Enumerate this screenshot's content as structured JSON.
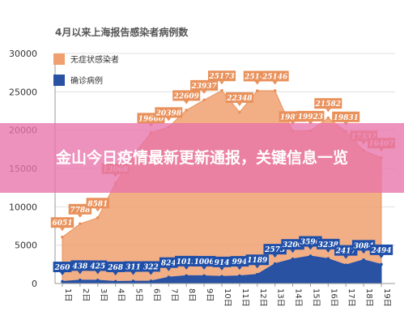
{
  "banner": {
    "headline": "金山今日疫情最新更新通报，关键信息一览"
  },
  "colors": {
    "asymptomatic": "#f0a070",
    "asymptomatic_label": "#e9915b",
    "confirmed": "#2952a3",
    "confirmed_label": "#1f4fa8",
    "grid": "#e0e0e0"
  },
  "chart_data": {
    "type": "area",
    "title": "4月以来上海报告感染者病例数",
    "xlabel": "",
    "ylabel": "",
    "ylim": [
      0,
      30000
    ],
    "yticks": [
      "0",
      "5000",
      "10000",
      "15000",
      "20000",
      "25000",
      "30000"
    ],
    "grid": true,
    "legend_position": "top-left",
    "categories": [
      "1日",
      "2日",
      "3日",
      "4日",
      "5日",
      "6日",
      "7日",
      "8日",
      "9日",
      "10日",
      "11日",
      "12日",
      "13日",
      "14日",
      "15日",
      "16日",
      "17日",
      "18日",
      "19日"
    ],
    "series": [
      {
        "name": "无症状感染者",
        "values": [
          6051,
          7788,
          8581,
          13068,
          16766,
          19660,
          20398,
          22609,
          23937,
          25173,
          22348,
          25141,
          25146,
          19872,
          19923,
          21582,
          19831,
          17332,
          16407
        ],
        "labels": [
          "6051",
          "7788",
          "8581",
          "13068",
          "",
          "19660",
          "20398",
          "22609",
          "23937",
          "25173",
          "22348",
          "25141",
          "25146",
          "19872",
          "19923",
          "21582",
          "19831",
          "17332",
          "16407"
        ]
      },
      {
        "name": "确诊病例",
        "values": [
          260,
          438,
          425,
          268,
          311,
          322,
          824,
          1015,
          1006,
          914,
          994,
          1189,
          2573,
          3200,
          3590,
          3238,
          2417,
          3084,
          2494
        ],
        "labels": [
          "260",
          "438",
          "425",
          "268",
          "311",
          "322",
          "824",
          "1015",
          "1006",
          "914",
          "994",
          "1189",
          "2573",
          "3200",
          "3590",
          "3238",
          "2417",
          "3084",
          "2494"
        ]
      }
    ]
  }
}
